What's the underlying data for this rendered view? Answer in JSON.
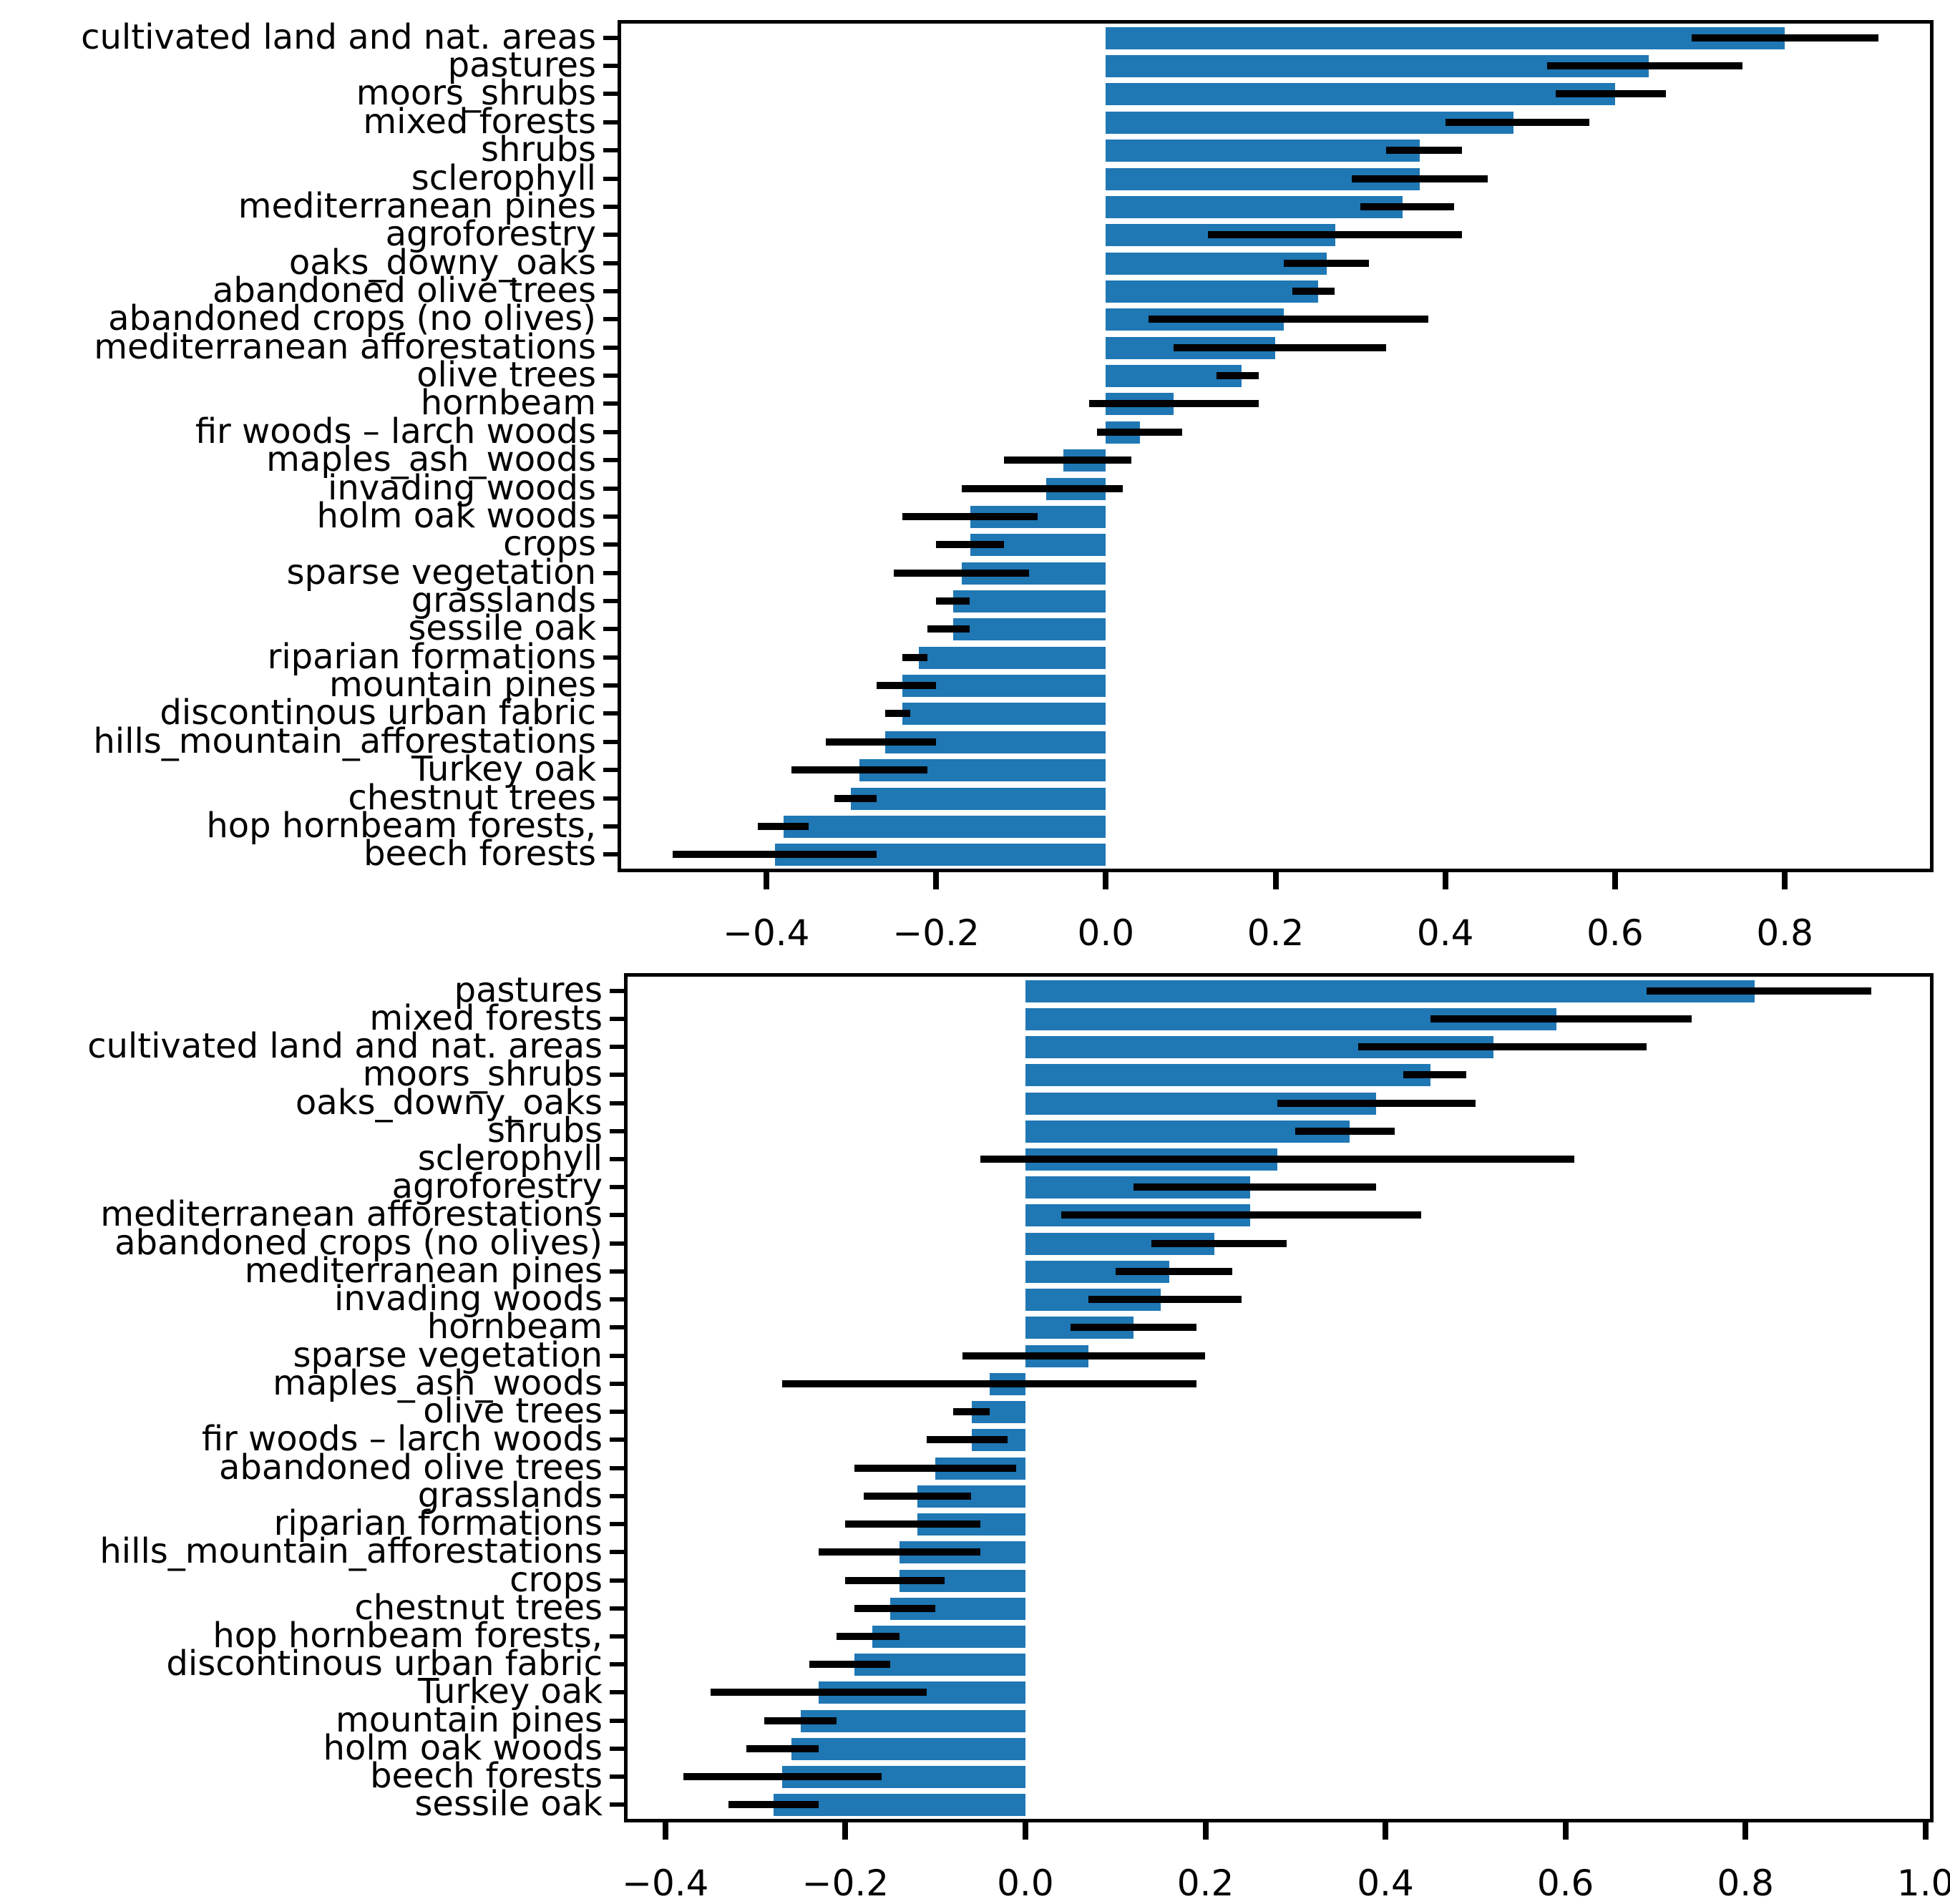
{
  "figure": {
    "background": "#ffffff"
  },
  "chart_data": [
    {
      "type": "bar",
      "orientation": "horizontal",
      "title": "",
      "xlabel": "",
      "ylabel": "",
      "grid": false,
      "legend": null,
      "bar_color": "#1f77b4",
      "error_color": "#000000",
      "xlim": [
        -0.571,
        0.971
      ],
      "xticks": [
        -0.4,
        -0.2,
        0.0,
        0.2,
        0.4,
        0.6,
        0.8
      ],
      "categories": [
        "cultivated land and nat. areas",
        "pastures",
        "moors_shrubs",
        "mixed forests",
        "shrubs",
        "sclerophyll",
        "mediterranean pines",
        "agroforestry",
        "oaks_downy_oaks",
        "abandoned olive trees",
        "abandoned crops (no olives)",
        "mediterranean afforestations",
        "olive trees",
        "hornbeam",
        "fir woods – larch woods",
        "maples_ash_woods",
        "invading woods",
        "holm oak woods",
        "crops",
        "sparse vegetation",
        "grasslands",
        "sessile oak",
        "riparian formations",
        "mountain pines",
        "discontinous urban fabric",
        "hills_mountain_afforestations",
        "Turkey oak",
        "chestnut trees",
        "hop hornbeam forests,",
        "beech forests"
      ],
      "values": [
        0.8,
        0.64,
        0.6,
        0.48,
        0.37,
        0.37,
        0.35,
        0.27,
        0.26,
        0.25,
        0.21,
        0.2,
        0.16,
        0.08,
        0.04,
        -0.05,
        -0.07,
        -0.16,
        -0.16,
        -0.17,
        -0.18,
        -0.18,
        -0.22,
        -0.24,
        -0.24,
        -0.26,
        -0.29,
        -0.3,
        -0.38,
        -0.39
      ],
      "error_low": [
        0.69,
        0.52,
        0.53,
        0.4,
        0.33,
        0.29,
        0.3,
        0.12,
        0.21,
        0.22,
        0.05,
        0.08,
        0.13,
        -0.02,
        -0.01,
        -0.12,
        -0.17,
        -0.24,
        -0.2,
        -0.25,
        -0.2,
        -0.21,
        -0.24,
        -0.27,
        -0.26,
        -0.33,
        -0.37,
        -0.32,
        -0.41,
        -0.51
      ],
      "error_high": [
        0.91,
        0.75,
        0.66,
        0.57,
        0.42,
        0.45,
        0.41,
        0.42,
        0.31,
        0.27,
        0.38,
        0.33,
        0.18,
        0.18,
        0.09,
        0.03,
        0.02,
        -0.08,
        -0.12,
        -0.09,
        -0.16,
        -0.16,
        -0.21,
        -0.2,
        -0.23,
        -0.2,
        -0.21,
        -0.27,
        -0.35,
        -0.27
      ]
    },
    {
      "type": "bar",
      "orientation": "horizontal",
      "title": "",
      "xlabel": "",
      "ylabel": "",
      "grid": false,
      "legend": null,
      "bar_color": "#1f77b4",
      "error_color": "#000000",
      "xlim": [
        -0.442,
        1.005
      ],
      "xticks": [
        -0.4,
        -0.2,
        0.0,
        0.2,
        0.4,
        0.6,
        0.8,
        1.0
      ],
      "categories": [
        "pastures",
        "mixed forests",
        "cultivated land and nat. areas",
        "moors_shrubs",
        "oaks_downy_oaks",
        "shrubs",
        "sclerophyll",
        "agroforestry",
        "mediterranean afforestations",
        "abandoned crops (no olives)",
        "mediterranean pines",
        "invading woods",
        "hornbeam",
        "sparse vegetation",
        "maples_ash_woods",
        "olive trees",
        "fir woods – larch woods",
        "abandoned olive trees",
        "grasslands",
        "riparian formations",
        "hills_mountain_afforestations",
        "crops",
        "chestnut trees",
        "hop hornbeam forests,",
        "discontinous urban fabric",
        "Turkey oak",
        "mountain pines",
        "holm oak woods",
        "beech forests",
        "sessile oak"
      ],
      "values": [
        0.81,
        0.59,
        0.52,
        0.45,
        0.39,
        0.36,
        0.28,
        0.25,
        0.25,
        0.21,
        0.16,
        0.15,
        0.12,
        0.07,
        -0.04,
        -0.06,
        -0.06,
        -0.1,
        -0.12,
        -0.12,
        -0.14,
        -0.14,
        -0.15,
        -0.17,
        -0.19,
        -0.23,
        -0.25,
        -0.26,
        -0.27,
        -0.28
      ],
      "error_low": [
        0.69,
        0.45,
        0.37,
        0.42,
        0.28,
        0.3,
        -0.05,
        0.12,
        0.04,
        0.14,
        0.1,
        0.07,
        0.05,
        -0.07,
        -0.27,
        -0.08,
        -0.11,
        -0.19,
        -0.18,
        -0.2,
        -0.23,
        -0.2,
        -0.19,
        -0.21,
        -0.24,
        -0.35,
        -0.29,
        -0.31,
        -0.38,
        -0.33
      ],
      "error_high": [
        0.94,
        0.74,
        0.69,
        0.49,
        0.5,
        0.41,
        0.61,
        0.39,
        0.44,
        0.29,
        0.23,
        0.24,
        0.19,
        0.2,
        0.19,
        -0.04,
        -0.02,
        -0.01,
        -0.06,
        -0.05,
        -0.05,
        -0.09,
        -0.1,
        -0.14,
        -0.15,
        -0.11,
        -0.21,
        -0.23,
        -0.16,
        -0.23
      ]
    }
  ]
}
